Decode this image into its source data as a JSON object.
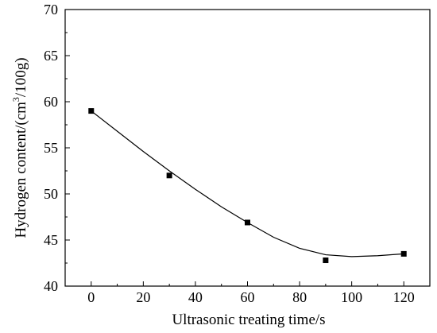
{
  "chart_data": {
    "type": "scatter",
    "xlabel": "Ultrasonic treating time/s",
    "ylabel": {
      "prefix": "Hydrogen content/(cm",
      "superscript": "3",
      "suffix": "/100g)"
    },
    "xlim": [
      -10,
      130
    ],
    "ylim": [
      40,
      70
    ],
    "xticks": [
      0,
      20,
      40,
      60,
      80,
      100,
      120
    ],
    "yticks": [
      40,
      45,
      50,
      55,
      60,
      65,
      70
    ],
    "series": [
      {
        "marker": "square",
        "color": "#000000",
        "x": [
          0,
          30,
          60,
          90,
          120
        ],
        "y": [
          59.0,
          52.0,
          46.9,
          42.8,
          43.5
        ]
      }
    ],
    "fit": {
      "type": "polynomial",
      "color": "#000000",
      "x": [
        0,
        10,
        20,
        30,
        40,
        50,
        60,
        70,
        80,
        90,
        100,
        110,
        120
      ],
      "y": [
        59.0,
        56.8,
        54.6,
        52.5,
        50.5,
        48.6,
        46.9,
        45.3,
        44.1,
        43.4,
        43.2,
        43.3,
        43.5
      ]
    },
    "grid": false,
    "legend": "none"
  }
}
